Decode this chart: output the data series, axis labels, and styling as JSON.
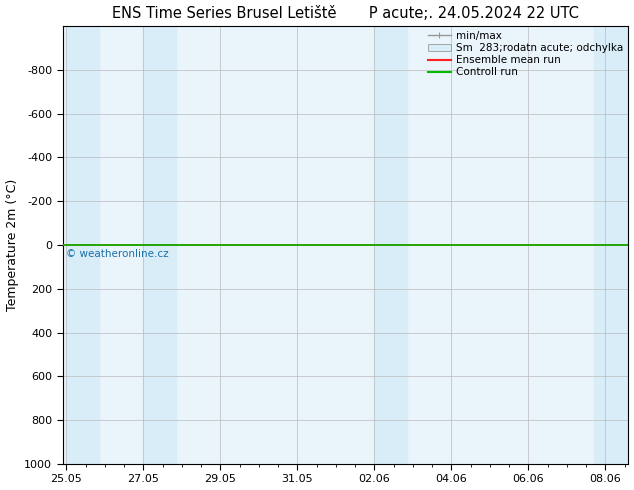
{
  "title_left": "ENS Time Series Brusel Letiště",
  "title_right": "P acute;. 24.05.2024 22 UTC",
  "ylabel": "Temperature 2m (°C)",
  "xlabel": "",
  "ylim_bottom": -1000,
  "ylim_top": 1000,
  "yticks": [
    -800,
    -600,
    -400,
    -200,
    0,
    200,
    400,
    600,
    800,
    1000
  ],
  "xtick_labels": [
    "25.05",
    "27.05",
    "29.05",
    "31.05",
    "02.06",
    "04.06",
    "06.06",
    "08.06"
  ],
  "xtick_positions": [
    0,
    2,
    4,
    6,
    8,
    10,
    12,
    14
  ],
  "x_min": -0.1,
  "x_max": 14.6,
  "shaded_bands": [
    [
      0.0,
      0.85
    ],
    [
      2.0,
      2.85
    ],
    [
      8.0,
      8.85
    ],
    [
      13.7,
      14.6
    ]
  ],
  "flat_line_y": 0,
  "line_color_mean": "#ff2020",
  "line_color_control": "#00bb00",
  "shaded_color": "#d8edf8",
  "plot_bg_color": "#eaf4fb",
  "background_color": "#ffffff",
  "watermark": "© weatheronline.cz",
  "watermark_color": "#1a6fa8",
  "grid_color": "#bbbbbb",
  "title_fontsize": 10.5,
  "axis_label_fontsize": 9,
  "tick_fontsize": 8,
  "legend_fontsize": 7.5
}
